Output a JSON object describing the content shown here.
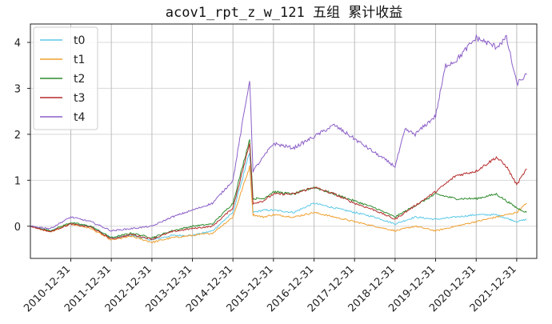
{
  "chart_data": {
    "type": "line",
    "title": "acov1_rpt_z_w_121 五组 累计收益",
    "xlabel": "",
    "ylabel": "",
    "ylim": [
      -0.7,
      4.4
    ],
    "xlim": [
      "2010-01-01",
      "2022-06-30"
    ],
    "grid": true,
    "legend_position": "top-left",
    "y_ticks": [
      0,
      1,
      2,
      3,
      4
    ],
    "x_ticks": [
      "2010-12-31",
      "2011-12-31",
      "2012-12-31",
      "2013-12-31",
      "2014-12-31",
      "2015-12-31",
      "2016-12-31",
      "2017-12-31",
      "2018-12-31",
      "2019-12-31",
      "2020-12-31",
      "2021-12-31"
    ],
    "series": [
      {
        "name": "t0",
        "color": "#5bc8e6",
        "values": [
          [
            "2010-01-01",
            0.0
          ],
          [
            "2010-06-30",
            -0.1
          ],
          [
            "2010-12-31",
            0.05
          ],
          [
            "2011-06-30",
            0.0
          ],
          [
            "2011-12-31",
            -0.25
          ],
          [
            "2012-06-30",
            -0.2
          ],
          [
            "2012-12-31",
            -0.3
          ],
          [
            "2013-06-30",
            -0.2
          ],
          [
            "2013-12-31",
            -0.2
          ],
          [
            "2014-06-30",
            -0.1
          ],
          [
            "2014-12-31",
            0.3
          ],
          [
            "2015-05-31",
            1.6
          ],
          [
            "2015-06-30",
            0.3
          ],
          [
            "2015-09-30",
            0.35
          ],
          [
            "2015-12-31",
            0.35
          ],
          [
            "2016-06-30",
            0.3
          ],
          [
            "2016-12-31",
            0.5
          ],
          [
            "2017-06-30",
            0.4
          ],
          [
            "2017-12-31",
            0.3
          ],
          [
            "2018-06-30",
            0.2
          ],
          [
            "2018-12-31",
            0.05
          ],
          [
            "2019-06-30",
            0.2
          ],
          [
            "2019-12-31",
            0.15
          ],
          [
            "2020-06-30",
            0.2
          ],
          [
            "2020-12-31",
            0.25
          ],
          [
            "2021-06-30",
            0.25
          ],
          [
            "2021-12-31",
            0.1
          ],
          [
            "2022-03-31",
            0.15
          ]
        ]
      },
      {
        "name": "t1",
        "color": "#f0a030",
        "values": [
          [
            "2010-01-01",
            0.0
          ],
          [
            "2010-06-30",
            -0.12
          ],
          [
            "2010-12-31",
            0.05
          ],
          [
            "2011-06-30",
            -0.05
          ],
          [
            "2011-12-31",
            -0.3
          ],
          [
            "2012-06-30",
            -0.22
          ],
          [
            "2012-12-31",
            -0.35
          ],
          [
            "2013-06-30",
            -0.25
          ],
          [
            "2013-12-31",
            -0.2
          ],
          [
            "2014-06-30",
            -0.15
          ],
          [
            "2014-12-31",
            0.2
          ],
          [
            "2015-05-31",
            1.3
          ],
          [
            "2015-06-30",
            0.25
          ],
          [
            "2015-09-30",
            0.2
          ],
          [
            "2015-12-31",
            0.25
          ],
          [
            "2016-06-30",
            0.2
          ],
          [
            "2016-12-31",
            0.3
          ],
          [
            "2017-06-30",
            0.2
          ],
          [
            "2017-12-31",
            0.1
          ],
          [
            "2018-06-30",
            0.0
          ],
          [
            "2018-12-31",
            -0.1
          ],
          [
            "2019-06-30",
            0.0
          ],
          [
            "2019-12-31",
            -0.1
          ],
          [
            "2020-06-30",
            0.0
          ],
          [
            "2020-12-31",
            0.1
          ],
          [
            "2021-06-30",
            0.2
          ],
          [
            "2021-12-31",
            0.3
          ],
          [
            "2022-03-31",
            0.5
          ]
        ]
      },
      {
        "name": "t2",
        "color": "#2e8b2e",
        "values": [
          [
            "2010-01-01",
            0.0
          ],
          [
            "2010-06-30",
            -0.1
          ],
          [
            "2010-12-31",
            0.08
          ],
          [
            "2011-06-30",
            0.0
          ],
          [
            "2011-12-31",
            -0.25
          ],
          [
            "2012-06-30",
            -0.15
          ],
          [
            "2012-12-31",
            -0.25
          ],
          [
            "2013-06-30",
            -0.1
          ],
          [
            "2013-12-31",
            0.0
          ],
          [
            "2014-06-30",
            0.05
          ],
          [
            "2014-12-31",
            0.5
          ],
          [
            "2015-05-31",
            1.9
          ],
          [
            "2015-06-30",
            0.6
          ],
          [
            "2015-09-30",
            0.6
          ],
          [
            "2015-12-31",
            0.75
          ],
          [
            "2016-06-30",
            0.7
          ],
          [
            "2016-12-31",
            0.85
          ],
          [
            "2017-06-30",
            0.7
          ],
          [
            "2017-12-31",
            0.55
          ],
          [
            "2018-06-30",
            0.4
          ],
          [
            "2018-12-31",
            0.2
          ],
          [
            "2019-06-30",
            0.45
          ],
          [
            "2019-12-31",
            0.7
          ],
          [
            "2020-06-30",
            0.6
          ],
          [
            "2020-12-31",
            0.6
          ],
          [
            "2021-06-30",
            0.7
          ],
          [
            "2021-12-31",
            0.4
          ],
          [
            "2022-03-31",
            0.3
          ]
        ]
      },
      {
        "name": "t3",
        "color": "#b52c2c",
        "values": [
          [
            "2010-01-01",
            0.0
          ],
          [
            "2010-06-30",
            -0.12
          ],
          [
            "2010-12-31",
            0.05
          ],
          [
            "2011-06-30",
            -0.02
          ],
          [
            "2011-12-31",
            -0.28
          ],
          [
            "2012-06-30",
            -0.18
          ],
          [
            "2012-12-31",
            -0.28
          ],
          [
            "2013-06-30",
            -0.12
          ],
          [
            "2013-12-31",
            -0.05
          ],
          [
            "2014-06-30",
            0.0
          ],
          [
            "2014-12-31",
            0.4
          ],
          [
            "2015-05-31",
            1.8
          ],
          [
            "2015-06-30",
            0.5
          ],
          [
            "2015-09-30",
            0.55
          ],
          [
            "2015-12-31",
            0.7
          ],
          [
            "2016-06-30",
            0.7
          ],
          [
            "2016-12-31",
            0.85
          ],
          [
            "2017-06-30",
            0.7
          ],
          [
            "2017-12-31",
            0.5
          ],
          [
            "2018-06-30",
            0.35
          ],
          [
            "2018-12-31",
            0.15
          ],
          [
            "2019-06-30",
            0.45
          ],
          [
            "2019-12-31",
            0.75
          ],
          [
            "2020-06-30",
            1.1
          ],
          [
            "2020-12-31",
            1.2
          ],
          [
            "2021-06-30",
            1.5
          ],
          [
            "2021-09-30",
            1.3
          ],
          [
            "2021-12-31",
            0.9
          ],
          [
            "2022-03-31",
            1.25
          ]
        ]
      },
      {
        "name": "t4",
        "color": "#8c5fc8",
        "values": [
          [
            "2010-01-01",
            0.0
          ],
          [
            "2010-06-30",
            -0.05
          ],
          [
            "2010-12-31",
            0.2
          ],
          [
            "2011-06-30",
            0.1
          ],
          [
            "2011-12-31",
            -0.1
          ],
          [
            "2012-06-30",
            -0.05
          ],
          [
            "2012-12-31",
            0.0
          ],
          [
            "2013-06-30",
            0.2
          ],
          [
            "2013-12-31",
            0.35
          ],
          [
            "2014-06-30",
            0.5
          ],
          [
            "2014-12-31",
            1.0
          ],
          [
            "2015-05-31",
            3.2
          ],
          [
            "2015-06-30",
            1.2
          ],
          [
            "2015-09-30",
            1.5
          ],
          [
            "2015-12-31",
            1.8
          ],
          [
            "2016-06-30",
            1.7
          ],
          [
            "2016-12-31",
            1.95
          ],
          [
            "2017-06-30",
            2.2
          ],
          [
            "2017-12-31",
            1.9
          ],
          [
            "2018-06-30",
            1.6
          ],
          [
            "2018-12-31",
            1.3
          ],
          [
            "2019-03-31",
            2.1
          ],
          [
            "2019-06-30",
            2.0
          ],
          [
            "2019-12-31",
            2.4
          ],
          [
            "2020-03-31",
            3.5
          ],
          [
            "2020-06-30",
            3.6
          ],
          [
            "2020-12-31",
            4.1
          ],
          [
            "2021-06-30",
            3.9
          ],
          [
            "2021-09-30",
            4.1
          ],
          [
            "2021-12-31",
            3.1
          ],
          [
            "2022-03-31",
            3.3
          ]
        ]
      }
    ]
  }
}
